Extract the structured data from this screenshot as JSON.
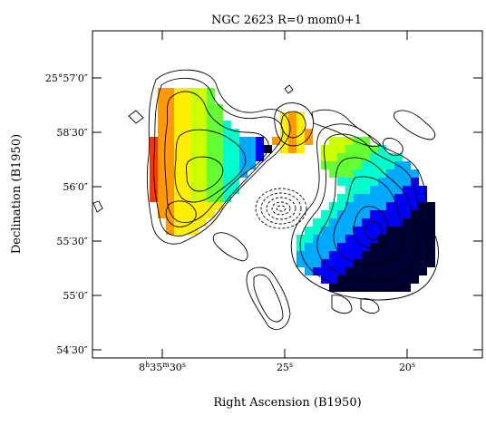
{
  "chart_data": {
    "type": "heatmap",
    "title": "NGC 2623 R=0 mom0+1",
    "xlabel": "Right Ascension (B1950)",
    "ylabel": "Declination (B1950)",
    "x_ticks": [
      {
        "value_s": 30,
        "label_main": "8",
        "label_h": "h",
        "label_m": "35",
        "label_mm": "m",
        "label_s": "30",
        "label_ss": "s"
      },
      {
        "value_s": 25,
        "label": "25",
        "label_ss": "s"
      },
      {
        "value_s": 20,
        "label": "20",
        "label_ss": "s"
      }
    ],
    "y_ticks": [
      {
        "value_arcsec": 57,
        "label": "25°57′0″"
      },
      {
        "value_arcsec": 58.5,
        "label": "58′30″"
      },
      {
        "value_arcsec": 56,
        "label": "56′0″"
      },
      {
        "value_arcsec": 55.5,
        "label": "55′30″"
      },
      {
        "value_arcsec": 55,
        "label": "55′0″"
      },
      {
        "value_arcsec": 54.5,
        "label": "54′30″"
      }
    ],
    "colormap": [
      "#000033",
      "#0000ff",
      "#00aaff",
      "#00ffcc",
      "#66ff33",
      "#ccff00",
      "#ffee00",
      "#ff9900",
      "#ff3300"
    ],
    "contour_color": "#000000"
  }
}
